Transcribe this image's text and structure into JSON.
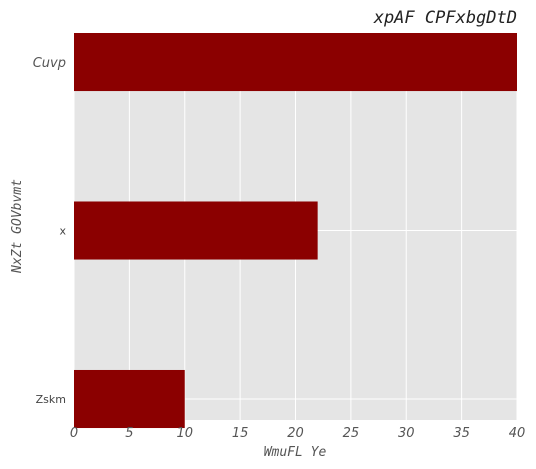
{
  "chart_data": {
    "type": "bar",
    "orientation": "horizontal",
    "title": "xpAF CPFxbgDtD",
    "xlabel": "WmuFL Ye",
    "ylabel": "NxZt GOVbvmt",
    "categories": [
      "Cuvp",
      "x",
      "Zskm"
    ],
    "values": [
      40,
      22,
      10
    ],
    "xlim": [
      0,
      40
    ],
    "xticks": [
      0,
      5,
      10,
      15,
      20,
      25,
      30,
      35,
      40
    ],
    "grid": true,
    "bar_color": "#8b0000",
    "background_color": "#e5e5e5"
  }
}
